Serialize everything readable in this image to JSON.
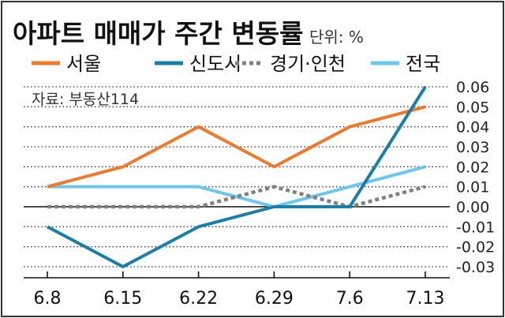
{
  "chart_data": {
    "type": "line",
    "title": "아파트 매매가 주간 변동률",
    "unit_label": "단위: %",
    "source": "자료: 부동산114",
    "categories": [
      "6.8",
      "6.15",
      "6.22",
      "6.29",
      "7.6",
      "7.13"
    ],
    "ylim": [
      -0.03,
      0.06
    ],
    "yticks": [
      "0.06",
      "0.05",
      "0.04",
      "0.03",
      "0.02",
      "0.01",
      "0.00",
      "-0.01",
      "-0.02",
      "-0.03"
    ],
    "yticks_values": [
      0.06,
      0.05,
      0.04,
      0.03,
      0.02,
      0.01,
      0.0,
      -0.01,
      -0.02,
      -0.03
    ],
    "legend_position": "top",
    "series": [
      {
        "name": "서울",
        "color": "#ee7a2a",
        "style": "solid",
        "values": [
          0.01,
          0.02,
          0.04,
          0.02,
          0.04,
          0.05
        ]
      },
      {
        "name": "신도시",
        "color": "#1a7fa8",
        "style": "solid",
        "values": [
          -0.01,
          -0.03,
          -0.01,
          0.0,
          0.0,
          0.06
        ]
      },
      {
        "name": "경기·인천",
        "color": "#808080",
        "style": "dotted",
        "values": [
          0.0,
          0.0,
          0.0,
          0.01,
          0.0,
          0.01
        ]
      },
      {
        "name": "전국",
        "color": "#6cc6ee",
        "style": "solid",
        "values": [
          0.01,
          0.01,
          0.01,
          0.0,
          0.01,
          0.02
        ]
      }
    ]
  }
}
